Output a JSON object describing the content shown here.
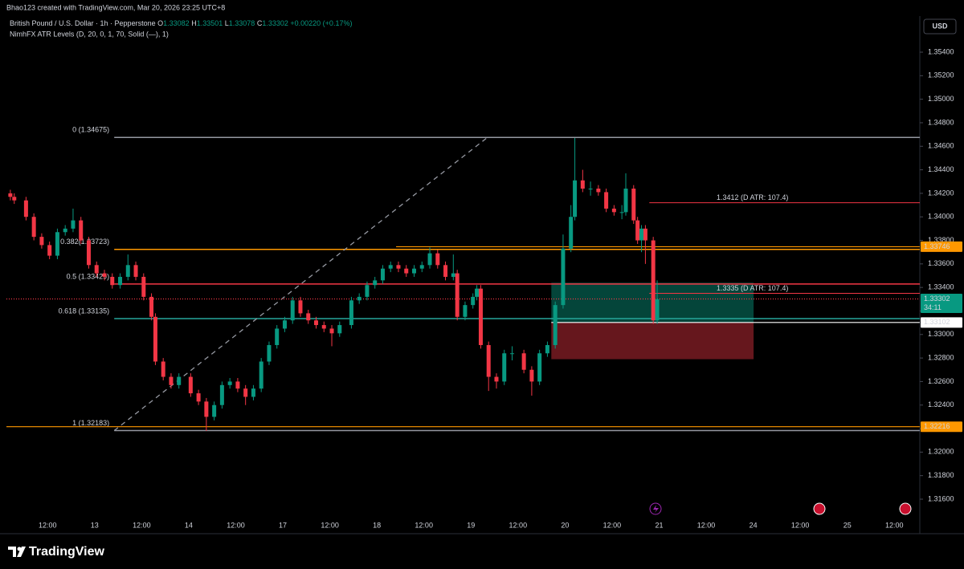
{
  "header": {
    "credit": "Bhao123 created with TradingView.com, Mar 20, 2026 23:25 UTC+8"
  },
  "legend": {
    "symbol": "British Pound / U.S. Dollar · 1h · Pepperstone",
    "ohlc": [
      {
        "label": "O",
        "value": "1.33082"
      },
      {
        "label": "H",
        "value": "1.33501"
      },
      {
        "label": "L",
        "value": "1.33078"
      },
      {
        "label": "C",
        "value": "1.33302"
      }
    ],
    "change": "+0.00220 (+0.17%)",
    "indicator": "NimhFX ATR Levels (D, 20, 0, 1, 70, Solid (—), 1)"
  },
  "currency": "USD",
  "footer": {
    "brand": "TradingView"
  },
  "chart_data": {
    "type": "candlestick",
    "up_color": "#089981",
    "down_color": "#f23645",
    "x": [
      1,
      2,
      5,
      7,
      9,
      11,
      13,
      15,
      17,
      19,
      21,
      23,
      25,
      27,
      29,
      31,
      33,
      35,
      37,
      38,
      40,
      42,
      44,
      47,
      49,
      51,
      53,
      55,
      57,
      59,
      61,
      63,
      65,
      67,
      69,
      71,
      73,
      75,
      77,
      79,
      81,
      83,
      85,
      88,
      90,
      92,
      94,
      96,
      98,
      100,
      102,
      104,
      106,
      108,
      110,
      112,
      114,
      115,
      117,
      119,
      120,
      121,
      123,
      125,
      127,
      129,
      132,
      134,
      136,
      138,
      140,
      142,
      144,
      145,
      147,
      149,
      151,
      153,
      155,
      157,
      158,
      160,
      161,
      162,
      163,
      165,
      166
    ],
    "open": [
      1.342,
      1.3417,
      1.3414,
      1.34,
      1.3383,
      1.3376,
      1.3367,
      1.3387,
      1.339,
      1.3397,
      1.338,
      1.3359,
      1.3352,
      1.3349,
      1.3342,
      1.3349,
      1.3359,
      1.3349,
      1.3332,
      1.3315,
      1.3277,
      1.3264,
      1.3257,
      1.3264,
      1.325,
      1.3243,
      1.323,
      1.324,
      1.3257,
      1.326,
      1.3254,
      1.3247,
      1.3254,
      1.3277,
      1.3291,
      1.3305,
      1.3312,
      1.3329,
      1.3318,
      1.3312,
      1.3308,
      1.3305,
      1.3301,
      1.3308,
      1.3329,
      1.3332,
      1.3342,
      1.3346,
      1.3356,
      1.3359,
      1.3356,
      1.3352,
      1.3356,
      1.3359,
      1.3369,
      1.3359,
      1.3349,
      1.3352,
      1.3315,
      1.3325,
      1.3332,
      1.3339,
      1.3291,
      1.3264,
      1.326,
      1.3284,
      1.3284,
      1.327,
      1.326,
      1.3284,
      1.3291,
      1.3325,
      1.3373,
      1.34,
      1.3431,
      1.3424,
      1.3424,
      1.3421,
      1.3407,
      1.3404,
      1.3404,
      1.3424,
      1.3397,
      1.338,
      1.339,
      1.338,
      1.3312
    ],
    "high": [
      1.3423,
      1.342,
      1.3417,
      1.3403,
      1.3386,
      1.3379,
      1.339,
      1.3393,
      1.3407,
      1.34,
      1.3383,
      1.3362,
      1.3355,
      1.3352,
      1.3352,
      1.3368,
      1.3362,
      1.3352,
      1.3335,
      1.3318,
      1.328,
      1.3267,
      1.3267,
      1.3267,
      1.3253,
      1.3246,
      1.3243,
      1.326,
      1.3263,
      1.3263,
      1.3257,
      1.3257,
      1.328,
      1.3294,
      1.3308,
      1.3315,
      1.3332,
      1.3332,
      1.3321,
      1.3315,
      1.3311,
      1.3308,
      1.3311,
      1.3332,
      1.3335,
      1.3345,
      1.3349,
      1.3359,
      1.3362,
      1.3362,
      1.3359,
      1.3359,
      1.3362,
      1.3374,
      1.3372,
      1.3362,
      1.3368,
      1.3355,
      1.3328,
      1.3335,
      1.3342,
      1.3342,
      1.3294,
      1.3267,
      1.3287,
      1.329,
      1.3287,
      1.3273,
      1.3287,
      1.3294,
      1.3328,
      1.3385,
      1.341,
      1.3467,
      1.344,
      1.343,
      1.3427,
      1.3424,
      1.341,
      1.341,
      1.3437,
      1.3427,
      1.34,
      1.3393,
      1.3393,
      1.3383,
      1.3346
    ],
    "low": [
      1.3414,
      1.3411,
      1.3397,
      1.338,
      1.3373,
      1.3364,
      1.3364,
      1.3384,
      1.3387,
      1.3377,
      1.3356,
      1.3349,
      1.3346,
      1.3339,
      1.3339,
      1.3346,
      1.3346,
      1.3329,
      1.3312,
      1.3274,
      1.3261,
      1.3254,
      1.3254,
      1.3247,
      1.324,
      1.3218,
      1.3227,
      1.3237,
      1.3254,
      1.3251,
      1.324,
      1.3244,
      1.3251,
      1.3274,
      1.3288,
      1.3302,
      1.3309,
      1.3315,
      1.3309,
      1.3305,
      1.3302,
      1.329,
      1.3298,
      1.3305,
      1.3326,
      1.3329,
      1.3339,
      1.3343,
      1.3353,
      1.3353,
      1.3349,
      1.3349,
      1.3353,
      1.3356,
      1.3356,
      1.3346,
      1.3346,
      1.3312,
      1.3312,
      1.3322,
      1.3329,
      1.3288,
      1.3252,
      1.3254,
      1.3257,
      1.3278,
      1.3267,
      1.3248,
      1.3257,
      1.3281,
      1.3288,
      1.3322,
      1.337,
      1.3397,
      1.3421,
      1.3418,
      1.3418,
      1.3404,
      1.3401,
      1.3398,
      1.3401,
      1.3394,
      1.3377,
      1.337,
      1.336,
      1.3309,
      1.3309
    ],
    "close": [
      1.3417,
      1.3414,
      1.34,
      1.3383,
      1.3376,
      1.3367,
      1.3387,
      1.339,
      1.3397,
      1.338,
      1.3359,
      1.3352,
      1.3349,
      1.3342,
      1.3349,
      1.3359,
      1.3349,
      1.3332,
      1.3315,
      1.3277,
      1.3264,
      1.3257,
      1.3264,
      1.325,
      1.3243,
      1.323,
      1.324,
      1.3257,
      1.326,
      1.3254,
      1.3247,
      1.3254,
      1.3277,
      1.3291,
      1.3305,
      1.3312,
      1.3329,
      1.3318,
      1.3312,
      1.3308,
      1.3305,
      1.3301,
      1.3308,
      1.3329,
      1.3332,
      1.3342,
      1.3346,
      1.3356,
      1.3359,
      1.3356,
      1.3352,
      1.3356,
      1.3359,
      1.3369,
      1.3359,
      1.3349,
      1.3352,
      1.3315,
      1.3325,
      1.3332,
      1.3339,
      1.3291,
      1.3264,
      1.326,
      1.3284,
      1.3284,
      1.327,
      1.326,
      1.3284,
      1.3291,
      1.3325,
      1.3373,
      1.34,
      1.3431,
      1.3424,
      1.3424,
      1.3421,
      1.3407,
      1.3404,
      1.3404,
      1.3424,
      1.3397,
      1.338,
      1.339,
      1.338,
      1.3312,
      1.333
    ],
    "xlim": [
      0,
      233
    ],
    "ylim": [
      1.31443,
      1.35707
    ],
    "xticks": [
      {
        "value": 10.5,
        "label": "12:00"
      },
      {
        "value": 22.5,
        "label": "13"
      },
      {
        "value": 34.5,
        "label": "12:00"
      },
      {
        "value": 46.5,
        "label": "14"
      },
      {
        "value": 58.5,
        "label": "12:00"
      },
      {
        "value": 70.5,
        "label": "17"
      },
      {
        "value": 82.5,
        "label": "12:00"
      },
      {
        "value": 94.5,
        "label": "18"
      },
      {
        "value": 106.5,
        "label": "12:00"
      },
      {
        "value": 118.5,
        "label": "19"
      },
      {
        "value": 130.5,
        "label": "12:00"
      },
      {
        "value": 142.5,
        "label": "20"
      },
      {
        "value": 154.5,
        "label": "12:00"
      },
      {
        "value": 166.5,
        "label": "21"
      },
      {
        "value": 178.5,
        "label": "12:00"
      },
      {
        "value": 190.5,
        "label": "24"
      },
      {
        "value": 202.5,
        "label": "12:00"
      },
      {
        "value": 214.5,
        "label": "25"
      },
      {
        "value": 226.5,
        "label": "12:00"
      }
    ],
    "yticks": [
      {
        "value": 1.354,
        "label": "1.35400"
      },
      {
        "value": 1.352,
        "label": "1.35200"
      },
      {
        "value": 1.35,
        "label": "1.35000"
      },
      {
        "value": 1.348,
        "label": "1.34800"
      },
      {
        "value": 1.346,
        "label": "1.34600"
      },
      {
        "value": 1.344,
        "label": "1.34400"
      },
      {
        "value": 1.342,
        "label": "1.34200"
      },
      {
        "value": 1.34,
        "label": "1.34000"
      },
      {
        "value": 1.338,
        "label": "1.33800"
      },
      {
        "value": 1.336,
        "label": "1.33600"
      },
      {
        "value": 1.334,
        "label": "1.33400"
      },
      {
        "value": 1.332,
        "label": "1.33200"
      },
      {
        "value": 1.33,
        "label": "1.33000"
      },
      {
        "value": 1.328,
        "label": "1.32800"
      },
      {
        "value": 1.326,
        "label": "1.32600"
      },
      {
        "value": 1.324,
        "label": "1.32400"
      },
      {
        "value": 1.322,
        "label": "1.32200"
      },
      {
        "value": 1.32,
        "label": "1.32000"
      },
      {
        "value": 1.318,
        "label": "1.31800"
      },
      {
        "value": 1.316,
        "label": "1.31600"
      }
    ],
    "fib": {
      "start": 27.5,
      "levels": [
        {
          "label": "0 (1.34675)",
          "price": 1.34675,
          "color": "#9598a1"
        },
        {
          "label": "0.382(1.33723)",
          "price": 1.33723,
          "color": "#ff9800"
        },
        {
          "label": "0.5 (1.33429)",
          "price": 1.33429,
          "color": "#f23645"
        },
        {
          "label": "0.618 (1.33135)",
          "price": 1.33135,
          "color": "#26a69a"
        },
        {
          "label": "1 (1.32183)",
          "price": 1.32183,
          "color": "#9598a1"
        }
      ]
    },
    "trend_line": {
      "x": [
        27.5,
        122.7
      ],
      "price": [
        1.32183,
        1.34675
      ]
    },
    "atr_levels": [
      {
        "label": "1.3412 (D ATR: 107.4)",
        "price": 1.3412,
        "start": 164
      },
      {
        "label": "1.3335 (D ATR: 107.4)",
        "price": 1.3335,
        "start": 164
      }
    ],
    "position": {
      "x": [
        139,
        190.6
      ],
      "target": 1.3344,
      "entry": 1.33102,
      "stop": 1.3279
    },
    "price_tags": [
      {
        "value": 1.33746,
        "label": "1.33746",
        "color": "#ff9800",
        "start": 99.4
      },
      {
        "value": 1.33302,
        "label": "1.33302",
        "countdown": "34:11",
        "color": "#089981",
        "start": 0
      },
      {
        "value": 1.33102,
        "label": "1.33102",
        "color": "#ffffff",
        "start": 139
      },
      {
        "value": 1.32216,
        "label": "1.32216",
        "color": "#ff9800",
        "start": 0
      }
    ]
  }
}
